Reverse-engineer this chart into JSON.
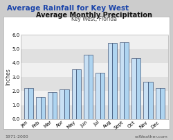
{
  "title_outer": "Average Rainfall for Key West",
  "title_inner": "Average Monthly Precipitation",
  "subtitle": "Key West, Florida",
  "ylabel": "Inches",
  "months": [
    "Jan",
    "Feb",
    "Mar",
    "Apr",
    "May",
    "Jun",
    "Jul",
    "Aug",
    "Sept",
    "Oct",
    "Nov",
    "Dec"
  ],
  "values": [
    2.2,
    1.55,
    1.9,
    2.1,
    3.55,
    4.6,
    3.3,
    5.45,
    5.5,
    4.35,
    2.65,
    2.2
  ],
  "ylim": [
    0.0,
    6.0
  ],
  "yticks": [
    0.0,
    1.0,
    2.0,
    3.0,
    4.0,
    5.0,
    6.0
  ],
  "bar_fill": "#aed4f0",
  "bar_edge": "#1a2f55",
  "bar_fill2": "#c8e0f4",
  "bg_outer": "#cccccc",
  "bg_inner": "#ffffff",
  "bg_stripe_dark": "#e0e0e0",
  "bg_stripe_light": "#f0f0f0",
  "title_outer_color": "#1a44aa",
  "title_outer_fontsize": 7.5,
  "title_inner_fontsize": 7.0,
  "subtitle_fontsize": 5.5,
  "ylabel_fontsize": 5.5,
  "tick_fontsize": 5.0,
  "footer_left": "1971-2000",
  "footer_right": "raWeather.com",
  "footer_fontsize": 4.5
}
